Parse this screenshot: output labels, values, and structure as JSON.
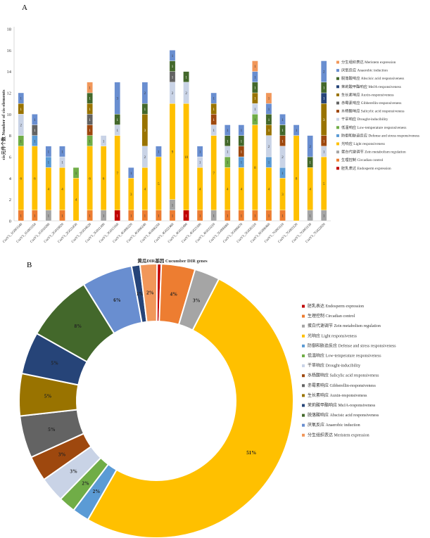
{
  "colors": {
    "endosperm": "#c00000",
    "circadian": "#ed7d31",
    "zein": "#a5a5a5",
    "light": "#ffc000",
    "defense": "#5b9bd5",
    "lowtemp": "#70ad47",
    "drought": "#c9d3e6",
    "salicylic": "#9e480e",
    "gibberellin": "#636363",
    "auxin": "#997300",
    "meja": "#264478",
    "abscisic": "#43682b",
    "anaerobic": "#698ed0",
    "meristem": "#f1975a"
  },
  "legend_items": [
    {
      "key": "meristem",
      "label": "分生组织表达 Meristem expression"
    },
    {
      "key": "anaerobic",
      "label": "厌氧反应 Anaerobic induction"
    },
    {
      "key": "abscisic",
      "label": "脱落酸响应 Abscisic acid responsiveness"
    },
    {
      "key": "meja",
      "label": "茉莉酸甲酯响应 MeJA-responsiveness"
    },
    {
      "key": "auxin",
      "label": "生长素响应 Auxin-responsiveness"
    },
    {
      "key": "gibberellin",
      "label": "赤霉素响应 Gibberellin-responsiveness"
    },
    {
      "key": "salicylic",
      "label": "水杨酸响应 Salicylic acid responsiveness"
    },
    {
      "key": "drought",
      "label": "干旱响应 Drought-inducibility"
    },
    {
      "key": "lowtemp",
      "label": "低温响应 Low-temperature responsiveness"
    },
    {
      "key": "defense",
      "label": "防御和胁迫反应 Defense and stress responsiveness"
    },
    {
      "key": "light",
      "label": "光响应 Light responsiveness"
    },
    {
      "key": "zein",
      "label": "蛋白代谢调节 Zein metabolism regulation"
    },
    {
      "key": "circadian",
      "label": "生理控制 Circadian control"
    },
    {
      "key": "endosperm",
      "label": "胚乳表达 Endosperm expression"
    }
  ],
  "chart_data": [
    {
      "type": "bar",
      "panel": "A",
      "stacked": true,
      "ylabel": "cis元件个数  Number of cis-elements",
      "xlabel": "黄瓜DIR基因  Cucumber DIR genes",
      "ylim": [
        0,
        18
      ],
      "yticks": [
        0,
        2,
        4,
        6,
        8,
        10,
        12,
        14,
        16,
        18
      ],
      "categories": [
        "CsaV3_1G003340",
        "CsaV3_1G003350",
        "CsaV3_1G010280",
        "CsaV3_2G019820",
        "CsaV3_2G021830",
        "CsaV3_2G034620",
        "CsaV3_3G011300",
        "CsaV3_3G015160",
        "CsaV3_4G006220",
        "CsaV3_4G006240",
        "CsaV3_4G006250",
        "CsaV3_4G022460",
        "CsaV3_4G022490",
        "CsaV3_4G023300",
        "CsaV3_4G033210",
        "CsaV3_5G006660",
        "CsaV3_5G006670",
        "CsaV3_5G026310",
        "CsaV3_6G006460",
        "CsaV3_7G003110",
        "CsaV3_7G003120",
        "CsaV3_7G003130",
        "CsaV3_7G022020"
      ],
      "stack_order": [
        "endosperm",
        "circadian",
        "zein",
        "light",
        "defense",
        "lowtemp",
        "drought",
        "salicylic",
        "gibberellin",
        "auxin",
        "meja",
        "abscisic",
        "anaerobic",
        "meristem"
      ],
      "series": [
        {
          "name": "胚乳表达 Endosperm expression",
          "key": "endosperm",
          "values": [
            0,
            0,
            0,
            0,
            0,
            0,
            0,
            1,
            0,
            0,
            0,
            0,
            1,
            0,
            0,
            0,
            0,
            0,
            0,
            0,
            0,
            0,
            0
          ]
        },
        {
          "name": "生理控制 Circadian control",
          "key": "circadian",
          "values": [
            1,
            1,
            0,
            1,
            0,
            1,
            0,
            0,
            1,
            1,
            1,
            1,
            0,
            1,
            0,
            1,
            1,
            1,
            1,
            1,
            0,
            0,
            0
          ]
        },
        {
          "name": "蛋白代谢调节 Zein metabolism regulation",
          "key": "zein",
          "values": [
            0,
            0,
            1,
            0,
            0,
            0,
            1,
            0,
            0,
            0,
            0,
            1,
            0,
            0,
            1,
            0,
            0,
            0,
            0,
            0,
            0,
            1,
            1
          ]
        },
        {
          "name": "光响应 Light responsiveness",
          "key": "light",
          "values": [
            6,
            6,
            4,
            4,
            4,
            6,
            6,
            7,
            3,
            4,
            5,
            9,
            10,
            4,
            7,
            4,
            4,
            8,
            4,
            3,
            8,
            4,
            5
          ]
        },
        {
          "name": "防御和胁迫反应 Defense and stress responsiveness",
          "key": "defense",
          "values": [
            0,
            1,
            1,
            0,
            0,
            0,
            0,
            0,
            0,
            0,
            0,
            0,
            0,
            0,
            0,
            0,
            1,
            0,
            1,
            1,
            0,
            0,
            0
          ]
        },
        {
          "name": "低温响应 Low-temperature responsiveness",
          "key": "lowtemp",
          "values": [
            1,
            0,
            0,
            0,
            1,
            1,
            0,
            0,
            0,
            0,
            0,
            0,
            0,
            0,
            0,
            1,
            0,
            1,
            0,
            0,
            0,
            0,
            0
          ]
        },
        {
          "name": "干旱响应 Drought-inducibility",
          "key": "drought",
          "values": [
            2,
            0,
            0,
            1,
            0,
            0,
            1,
            1,
            0,
            2,
            0,
            2,
            2,
            1,
            1,
            1,
            0,
            1,
            2,
            2,
            0,
            0,
            1
          ]
        },
        {
          "name": "水杨酸响应 Salicylic acid responsiveness",
          "key": "salicylic",
          "values": [
            0,
            0,
            0,
            0,
            0,
            1,
            0,
            0,
            0,
            0,
            0,
            0,
            0,
            0,
            1,
            0,
            1,
            0,
            0,
            1,
            0,
            0,
            1
          ]
        },
        {
          "name": "赤霉素响应 Gibberellin-responsiveness",
          "key": "gibberellin",
          "values": [
            0,
            1,
            0,
            0,
            0,
            1,
            0,
            0,
            0,
            0,
            0,
            1,
            0,
            0,
            0,
            0,
            0,
            0,
            0,
            0,
            0,
            0,
            0
          ]
        },
        {
          "name": "生长素响应 Auxin-responsiveness",
          "key": "auxin",
          "values": [
            1,
            0,
            0,
            0,
            0,
            1,
            0,
            0,
            0,
            3,
            0,
            0,
            0,
            0,
            1,
            0,
            0,
            1,
            1,
            0,
            0,
            0,
            3
          ]
        },
        {
          "name": "茉莉酸甲酯响应 MeJA-responsiveness",
          "key": "meja",
          "values": [
            0,
            0,
            0,
            0,
            0,
            0,
            0,
            0,
            0,
            0,
            0,
            0,
            0,
            0,
            0,
            0,
            0,
            0,
            0,
            0,
            0,
            0,
            1
          ]
        },
        {
          "name": "脱落酸响应 Abscisic acid responsiveness",
          "key": "abscisic",
          "values": [
            0,
            0,
            0,
            0,
            0,
            1,
            0,
            1,
            0,
            1,
            0,
            1,
            1,
            0,
            0,
            1,
            1,
            1,
            1,
            1,
            0,
            1,
            1
          ]
        },
        {
          "name": "厌氧反应 Anaerobic induction",
          "key": "anaerobic",
          "values": [
            1,
            1,
            1,
            1,
            0,
            0,
            0,
            3,
            1,
            2,
            1,
            1,
            0,
            1,
            1,
            1,
            1,
            1,
            1,
            1,
            1,
            2,
            2
          ]
        },
        {
          "name": "分生组织表达 Meristem expression",
          "key": "meristem",
          "values": [
            0,
            0,
            0,
            0,
            0,
            1,
            0,
            0,
            0,
            0,
            0,
            0,
            0,
            0,
            0,
            0,
            0,
            1,
            1,
            0,
            0,
            0,
            0
          ]
        }
      ]
    },
    {
      "type": "pie",
      "panel": "B",
      "donut": true,
      "slices": [
        {
          "key": "endosperm",
          "label": "胚乳表达 Endosperm expression",
          "value": 0.5,
          "text": ""
        },
        {
          "key": "circadian",
          "label": "生理控制 Circadian control",
          "value": 4,
          "text": "4%"
        },
        {
          "key": "zein",
          "label": "蛋白代谢调节 Zein metabolism regulation",
          "value": 3,
          "text": "3%"
        },
        {
          "key": "light",
          "label": "光响应 Light responsiveness",
          "value": 51,
          "text": "51%"
        },
        {
          "key": "defense",
          "label": "防御和胁迫反应 Defense and stress responsiveness",
          "value": 2,
          "text": "2%"
        },
        {
          "key": "lowtemp",
          "label": "低温响应 Low-temperature responsiveness",
          "value": 2,
          "text": "2%"
        },
        {
          "key": "drought",
          "label": "干旱响应 Drought-inducibility",
          "value": 3,
          "text": "3%"
        },
        {
          "key": "salicylic",
          "label": "水杨酸响应 Salicylic acid responsiveness",
          "value": 3,
          "text": "3%"
        },
        {
          "key": "gibberellin",
          "label": "赤霉素响应 Gibberellin-responsiveness",
          "value": 5,
          "text": "5%"
        },
        {
          "key": "auxin",
          "label": "生长素响应 Auxin-responsiveness",
          "value": 5,
          "text": "5%"
        },
        {
          "key": "meja",
          "label": "茉莉酸甲酯响应 MeJA-responsiveness",
          "value": 5,
          "text": "5%"
        },
        {
          "key": "abscisic",
          "label": "脱落酸响应 Abscisic acid responsiveness",
          "value": 8,
          "text": "8%"
        },
        {
          "key": "anaerobic",
          "label": "厌氧反应 Anaerobic induction",
          "value": 6,
          "text": "6%"
        },
        {
          "key": "meja2",
          "label": "",
          "value": 1,
          "text": "1%"
        },
        {
          "key": "meristem",
          "label": "分生组织表达 Meristem expression",
          "value": 2,
          "text": "2%"
        }
      ],
      "legend_order": [
        "endosperm",
        "circadian",
        "zein",
        "light",
        "defense",
        "lowtemp",
        "drought",
        "salicylic",
        "gibberellin",
        "auxin",
        "meja",
        "abscisic",
        "anaerobic",
        "meristem"
      ]
    }
  ],
  "panels": {
    "a_label": "A",
    "b_label": "B"
  }
}
